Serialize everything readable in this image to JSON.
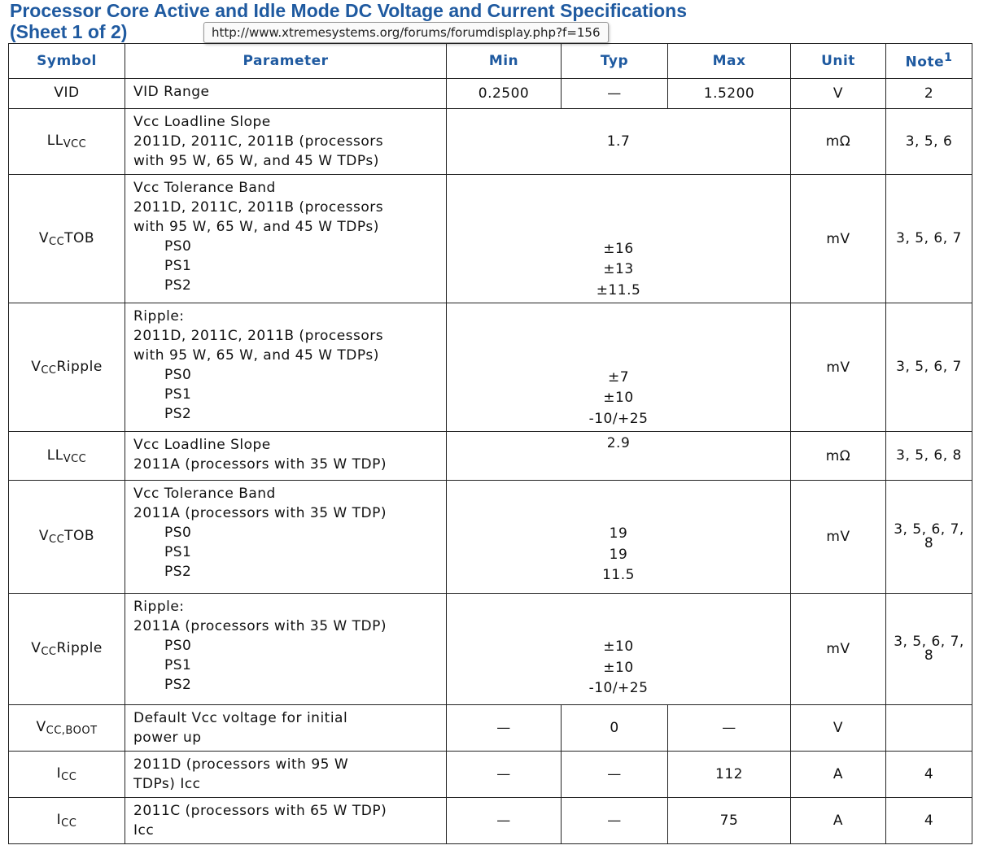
{
  "title_line1": "Processor Core Active and Idle Mode DC Voltage and Current Specifications",
  "title_line2": "(Sheet 1 of 2)",
  "tooltip_url": "http://www.xtremesystems.org/forums/forumdisplay.php?f=156",
  "headers": {
    "symbol": "Symbol",
    "parameter": "Parameter",
    "min": "Min",
    "typ": "Typ",
    "max": "Max",
    "unit": "Unit",
    "note": "Note",
    "note_sup": "1"
  },
  "rows": [
    {
      "sym": "VID",
      "sym_sub": "",
      "sym_tail": "",
      "param": [
        "VID Range"
      ],
      "min": "0.2500",
      "typ": "—",
      "max": "1.5200",
      "unit": "V",
      "note": "2"
    },
    {
      "sym": "LL",
      "sym_sub": "VCC",
      "sym_tail": "",
      "param": [
        "Vcc Loadline Slope",
        "2011D, 2011C, 2011B (processors",
        "with 95 W, 65 W, and 45 W TDPs)"
      ],
      "span": [
        "",
        "1.7"
      ],
      "unit": "mΩ",
      "note": "3, 5, 6"
    },
    {
      "sym": "V",
      "sym_sub": "CC",
      "sym_tail": "TOB",
      "param": [
        "Vcc Tolerance Band",
        "2011D, 2011C, 2011B (processors",
        "with 95 W, 65 W, and 45 W TDPs)",
        "PS0",
        "PS1",
        "PS2"
      ],
      "span": [
        "",
        "",
        "",
        "±16",
        "±13",
        "±11.5"
      ],
      "unit": "mV",
      "note": "3, 5, 6, 7"
    },
    {
      "sym": "V",
      "sym_sub": "CC",
      "sym_tail": "Ripple",
      "param": [
        "Ripple:",
        "2011D, 2011C, 2011B (processors",
        "with 95 W, 65 W, and 45 W TDPs)",
        "PS0",
        "PS1",
        "PS2"
      ],
      "span": [
        "",
        "",
        "",
        "±7",
        "±10",
        "-10/+25"
      ],
      "unit": "mV",
      "note": "3, 5, 6, 7"
    },
    {
      "sym": "LL",
      "sym_sub": "VCC",
      "sym_tail": "",
      "param": [
        "Vcc Loadline Slope",
        "2011A (processors with 35 W TDP)"
      ],
      "span": [
        "2.9"
      ],
      "unit": "mΩ",
      "note": "3, 5, 6, 8"
    },
    {
      "sym": "V",
      "sym_sub": "CC",
      "sym_tail": "TOB",
      "param": [
        "Vcc Tolerance Band",
        "2011A (processors with 35 W TDP)",
        "PS0",
        "PS1",
        "PS2"
      ],
      "span": [
        "",
        "",
        "19",
        "19",
        "11.5"
      ],
      "unit": "mV",
      "note": "3, 5, 6, 7, 8"
    },
    {
      "sym": "V",
      "sym_sub": "CC",
      "sym_tail": "Ripple",
      "param": [
        "Ripple:",
        "2011A (processors with 35 W TDP)",
        "PS0",
        "PS1",
        "PS2"
      ],
      "span": [
        "",
        "",
        "±10",
        "±10",
        "-10/+25"
      ],
      "unit": "mV",
      "note": "3, 5, 6, 7, 8"
    },
    {
      "sym": "V",
      "sym_sub": "CC,BOOT",
      "sym_tail": "",
      "param": [
        "Default Vcc voltage for initial",
        "power up"
      ],
      "min": "—",
      "typ": "0",
      "max": "—",
      "unit": "V",
      "note": ""
    },
    {
      "sym": "I",
      "sym_sub": "CC",
      "sym_tail": "",
      "param": [
        "2011D (processors with 95 W",
        "TDPs) Icc"
      ],
      "min": "—",
      "typ": "—",
      "max": "112",
      "unit": "A",
      "note": "4"
    },
    {
      "sym": "I",
      "sym_sub": "CC",
      "sym_tail": "",
      "param": [
        "2011C (processors with 65 W TDP)",
        "Icc"
      ],
      "min": "—",
      "typ": "—",
      "max": "75",
      "unit": "A",
      "note": "4"
    }
  ]
}
